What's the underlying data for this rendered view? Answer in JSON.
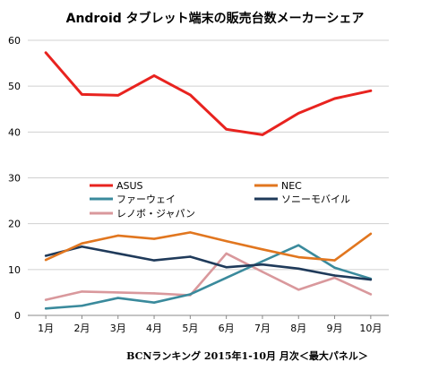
{
  "chart_data": {
    "type": "line",
    "title": "Android タブレット端末の販売台数メーカーシェア",
    "source_note": "BCNランキング 2015年1-10月 月次＜最大パネル＞",
    "categories": [
      "1月",
      "2月",
      "3月",
      "4月",
      "5月",
      "6月",
      "7月",
      "8月",
      "9月",
      "10月"
    ],
    "ylim": [
      0,
      60
    ],
    "yticks": [
      0,
      10,
      20,
      30,
      40,
      50,
      60
    ],
    "grid": true,
    "legend_position": "center",
    "series": [
      {
        "name": "ASUS",
        "color": "#e8231f",
        "values": [
          57.3,
          48.2,
          48.0,
          52.3,
          48.1,
          40.6,
          39.4,
          44.1,
          47.3,
          49.0
        ]
      },
      {
        "name": "NEC",
        "color": "#e1761f",
        "values": [
          12.1,
          15.7,
          17.4,
          16.7,
          18.1,
          16.2,
          14.4,
          12.7,
          12.0,
          17.8
        ]
      },
      {
        "name": "ファーウェイ",
        "color": "#3a8a9c",
        "values": [
          1.5,
          2.1,
          3.8,
          2.8,
          4.6,
          8.2,
          11.8,
          15.3,
          10.4,
          8.0
        ]
      },
      {
        "name": "ソニーモバイル",
        "color": "#1f3a5a",
        "values": [
          13.0,
          15.0,
          13.5,
          12.0,
          12.8,
          10.5,
          11.1,
          10.2,
          8.7,
          7.8
        ]
      },
      {
        "name": "レノボ・ジャパン",
        "color": "#d9989c",
        "values": [
          3.4,
          5.2,
          5.0,
          4.8,
          4.4,
          13.5,
          9.5,
          5.6,
          8.2,
          4.6
        ]
      }
    ]
  }
}
